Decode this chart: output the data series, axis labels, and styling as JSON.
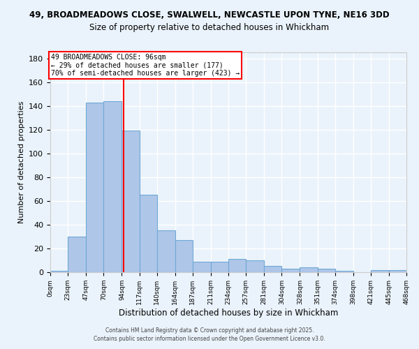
{
  "title_line1": "49, BROADMEADOWS CLOSE, SWALWELL, NEWCASTLE UPON TYNE, NE16 3DD",
  "title_line2": "Size of property relative to detached houses in Whickham",
  "xlabel": "Distribution of detached houses by size in Whickham",
  "ylabel": "Number of detached properties",
  "bin_edges": [
    0,
    23,
    47,
    70,
    94,
    117,
    140,
    164,
    187,
    211,
    234,
    257,
    281,
    304,
    328,
    351,
    374,
    398,
    421,
    445,
    468
  ],
  "bin_labels": [
    "0sqm",
    "23sqm",
    "47sqm",
    "70sqm",
    "94sqm",
    "117sqm",
    "140sqm",
    "164sqm",
    "187sqm",
    "211sqm",
    "234sqm",
    "257sqm",
    "281sqm",
    "304sqm",
    "328sqm",
    "351sqm",
    "374sqm",
    "398sqm",
    "421sqm",
    "445sqm",
    "468sqm"
  ],
  "counts": [
    1,
    30,
    143,
    144,
    119,
    65,
    35,
    27,
    9,
    9,
    11,
    10,
    5,
    3,
    4,
    3,
    1,
    0,
    2,
    2
  ],
  "bar_color": "#AEC6E8",
  "bar_edge_color": "#6FA8D6",
  "property_size": 96,
  "annotation_text1": "49 BROADMEADOWS CLOSE: 96sqm",
  "annotation_text2": "← 29% of detached houses are smaller (177)",
  "annotation_text3": "70% of semi-detached houses are larger (423) →",
  "annotation_box_color": "white",
  "annotation_box_edge": "red",
  "red_line_x": 96,
  "ylim": [
    0,
    185
  ],
  "yticks": [
    0,
    20,
    40,
    60,
    80,
    100,
    120,
    140,
    160,
    180
  ],
  "footer1": "Contains HM Land Registry data © Crown copyright and database right 2025.",
  "footer2": "Contains public sector information licensed under the Open Government Licence v3.0.",
  "bg_color": "#EAF3FB",
  "grid_color": "white"
}
